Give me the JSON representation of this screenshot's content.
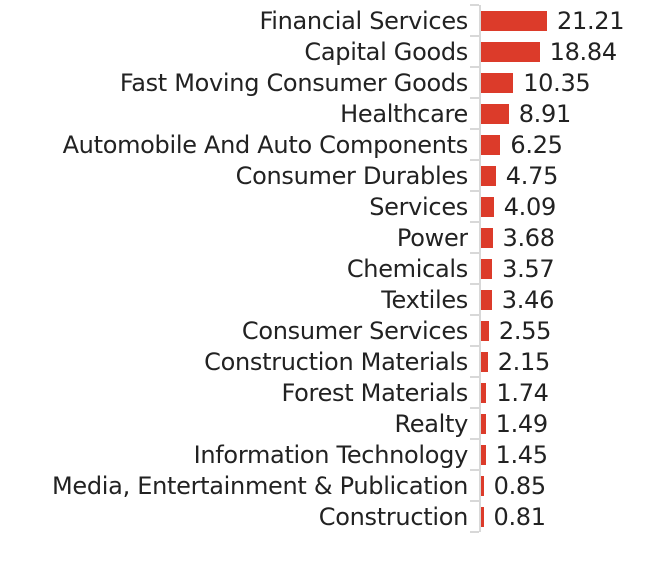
{
  "chart_data": {
    "type": "bar",
    "orientation": "horizontal",
    "title": "",
    "xlabel": "",
    "ylabel": "",
    "xlim": [
      0,
      21.21
    ],
    "grid": false,
    "legend": false,
    "value_label_position": "right-of-bar",
    "categories": [
      "Financial Services",
      "Capital Goods",
      "Fast Moving Consumer Goods",
      "Healthcare",
      "Automobile And Auto Components",
      "Consumer Durables",
      "Services",
      "Power",
      "Chemicals",
      "Textiles",
      "Consumer Services",
      "Construction Materials",
      "Forest Materials",
      "Realty",
      "Information Technology",
      "Media, Entertainment & Publication",
      "Construction"
    ],
    "values": [
      21.21,
      18.84,
      10.35,
      8.91,
      6.25,
      4.75,
      4.09,
      3.68,
      3.57,
      3.46,
      2.55,
      2.15,
      1.74,
      1.49,
      1.45,
      0.85,
      0.81
    ],
    "value_labels": [
      "21.21",
      "18.84",
      "10.35",
      "8.91",
      "6.25",
      "4.75",
      "4.09",
      "3.68",
      "3.57",
      "3.46",
      "2.55",
      "2.15",
      "1.74",
      "1.49",
      "1.45",
      "0.85",
      "0.81"
    ],
    "colors": {
      "bar": "#DC3B2A",
      "axis": "#D8D8D8",
      "text": "#222222",
      "background": "#FFFFFF"
    }
  }
}
